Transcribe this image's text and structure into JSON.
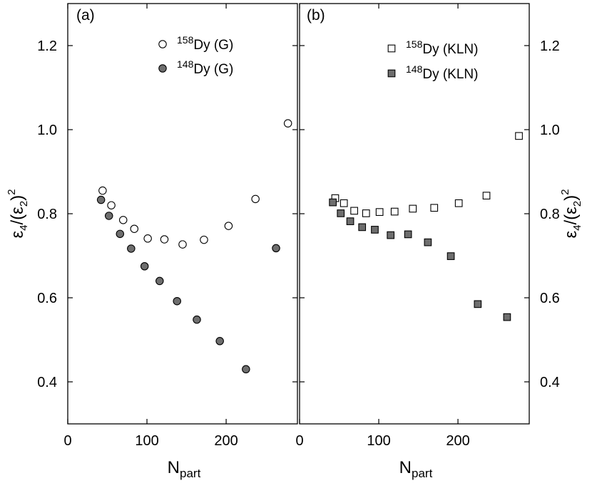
{
  "chart_data": [
    {
      "type": "scatter",
      "panel_label": "(a)",
      "xlabel": {
        "main": "N",
        "sub": "part"
      },
      "ylabel": {
        "sym": "ε",
        "sub4": "4",
        "mid": "/(ε",
        "sub2": "2",
        "close": ")",
        "sup": "2"
      },
      "xlim": [
        0,
        290
      ],
      "ylim": [
        0.3,
        1.3
      ],
      "xticks": [
        0,
        100,
        200
      ],
      "xtick_labels": [
        "0",
        "100",
        "200"
      ],
      "yticks": [
        0.4,
        0.6,
        0.8,
        1.0,
        1.2
      ],
      "ytick_labels": [
        "0.4",
        "0.6",
        "0.8",
        "1.0",
        "1.2"
      ],
      "legend_position": "top-right",
      "series": [
        {
          "name": "158Dy (G)",
          "legend": {
            "sup": "158",
            "text": "Dy (G)"
          },
          "marker": "circle",
          "fill": "#ffffff",
          "x": [
            44,
            55,
            70,
            84,
            101,
            122,
            145,
            172,
            203,
            237,
            278
          ],
          "y": [
            0.855,
            0.82,
            0.785,
            0.764,
            0.741,
            0.739,
            0.727,
            0.738,
            0.771,
            0.835,
            1.015
          ]
        },
        {
          "name": "148Dy (G)",
          "legend": {
            "sup": "148",
            "text": "Dy (G)"
          },
          "marker": "circle",
          "fill": "#6e6e6e",
          "x": [
            42,
            52,
            66,
            80,
            97,
            116,
            138,
            163,
            192,
            225,
            263
          ],
          "y": [
            0.833,
            0.795,
            0.752,
            0.717,
            0.675,
            0.64,
            0.592,
            0.548,
            0.497,
            0.43,
            0.718
          ]
        }
      ]
    },
    {
      "type": "scatter",
      "panel_label": "(b)",
      "xlabel": {
        "main": "N",
        "sub": "part"
      },
      "ylabel": {
        "sym": "ε",
        "sub4": "4",
        "mid": "/(ε",
        "sub2": "2",
        "close": ")",
        "sup": "2"
      },
      "xlim": [
        0,
        290
      ],
      "ylim": [
        0.3,
        1.3
      ],
      "xticks": [
        0,
        100,
        200
      ],
      "xtick_labels": [
        "0",
        "100",
        "200"
      ],
      "yticks": [
        0.4,
        0.6,
        0.8,
        1.0,
        1.2
      ],
      "ytick_labels": [
        "0.4",
        "0.6",
        "0.8",
        "1.0",
        "1.2"
      ],
      "legend_position": "top-right",
      "series": [
        {
          "name": "158Dy (KLN)",
          "legend": {
            "sup": "158",
            "text": "Dy (KLN)"
          },
          "marker": "square",
          "fill": "#ffffff",
          "x": [
            45,
            56,
            69,
            84,
            101,
            120,
            143,
            170,
            201,
            236,
            277
          ],
          "y": [
            0.837,
            0.825,
            0.807,
            0.801,
            0.804,
            0.805,
            0.812,
            0.814,
            0.825,
            0.843,
            0.985
          ]
        },
        {
          "name": "148Dy (KLN)",
          "legend": {
            "sup": "148",
            "text": "Dy (KLN)"
          },
          "marker": "square",
          "fill": "#6e6e6e",
          "x": [
            42,
            52,
            64,
            79,
            95,
            115,
            137,
            162,
            191,
            225,
            262
          ],
          "y": [
            0.827,
            0.801,
            0.782,
            0.768,
            0.762,
            0.749,
            0.751,
            0.732,
            0.699,
            0.585,
            0.554
          ]
        }
      ]
    }
  ]
}
